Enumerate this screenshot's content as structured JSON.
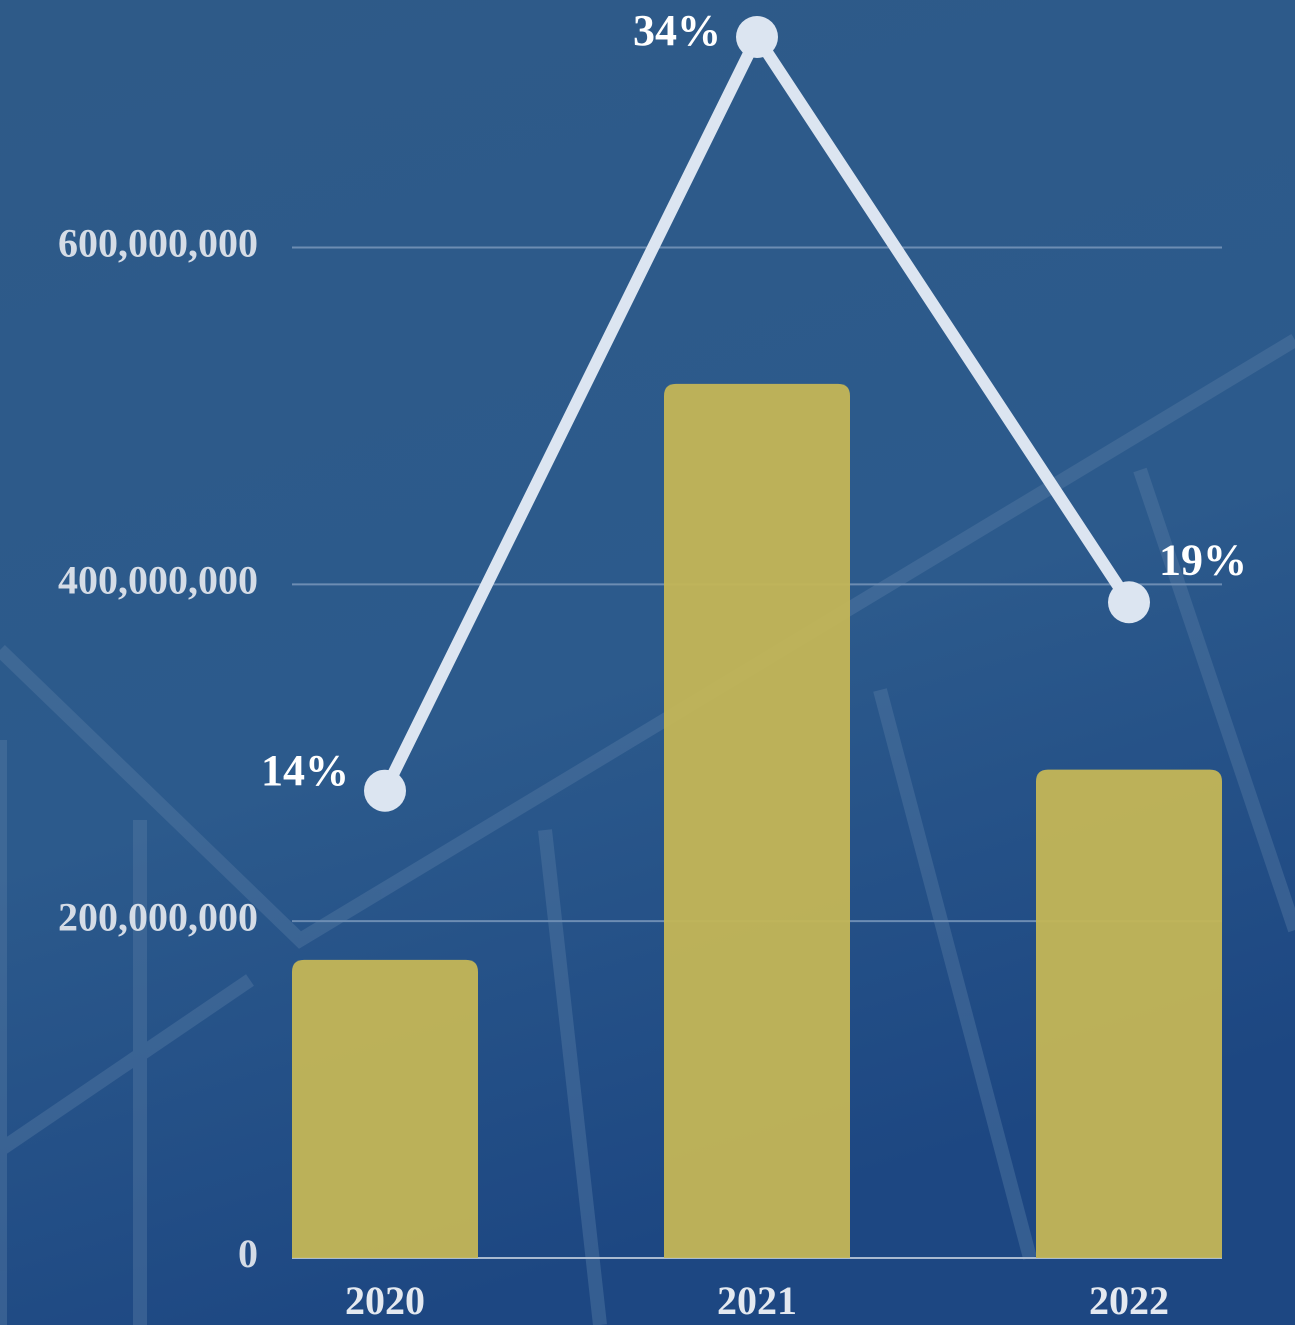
{
  "chart_data": {
    "type": "bar-line",
    "categories": [
      "2020",
      "2021",
      "2022"
    ],
    "series": [
      {
        "type": "bar",
        "color": "#c4b656",
        "values": [
          177000000,
          519000000,
          290000000
        ]
      },
      {
        "type": "line",
        "axis": "y2",
        "color": "#dce5f1",
        "values": [
          14,
          34,
          19
        ],
        "value_labels": [
          "14%",
          "34%",
          "19%"
        ]
      }
    ],
    "ylim": [
      0,
      725000000
    ],
    "yticks": [
      0,
      {
        "value": 200000000,
        "label": "200,000,000"
      },
      {
        "value": 400000000,
        "label": "400,000,000"
      },
      {
        "value": 600000000,
        "label": "600,000,000"
      }
    ],
    "y2lim": [
      1.6,
      34
    ],
    "grid": true
  }
}
